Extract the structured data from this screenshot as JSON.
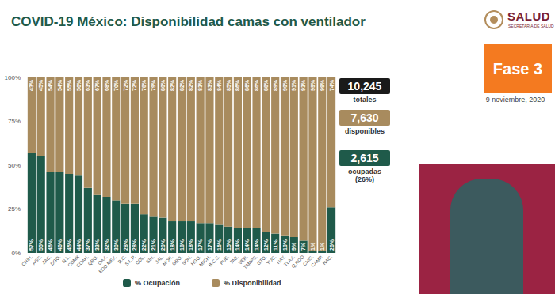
{
  "chart_data": {
    "type": "bar",
    "title": "COVID-19 México: Disponibilidad camas con ventilador",
    "stacked": true,
    "data_labels": true,
    "grid": false,
    "legend": "bottom",
    "categories": [
      "CHIH.",
      "AGS.",
      "ZAC.",
      "DGO.",
      "N.L.",
      "CDMX",
      "COAH.",
      "QRO.",
      "OAX.",
      "EDO.MEX.",
      "B.C.",
      "S.L.P.",
      "COL.",
      "SIN.",
      "JAL.",
      "MOR.",
      "GRO.",
      "SON.",
      "HGO.",
      "MICH.",
      "B.C.S.",
      "PUE.",
      "TAB.",
      "VER.",
      "TAMPS.",
      "GTO.",
      "YUC.",
      "NAY.",
      "TLAX.",
      "Q.ROO",
      "CHIS.",
      "CAMP.",
      "NAC."
    ],
    "series": [
      {
        "name": "% Ocupación",
        "color": "#1f5a4a",
        "values": [
          57,
          55,
          46,
          46,
          45,
          44,
          37,
          33,
          32,
          30,
          28,
          28,
          22,
          21,
          20,
          18,
          18,
          18,
          17,
          17,
          16,
          15,
          14,
          14,
          14,
          12,
          11,
          10,
          9,
          7,
          1,
          1,
          26
        ],
        "value_labels": [
          "57%",
          "55%",
          "46%",
          "46%",
          "45%",
          "44%",
          "37%",
          "33%",
          "32%",
          "30%",
          "28%",
          "28%",
          "22%",
          "21%",
          "20%",
          "18%",
          "18%",
          "18%",
          "17%",
          "17%",
          "16%",
          "15%",
          "14%",
          "14%",
          "14%",
          "12%",
          "11%",
          "10%",
          "9%",
          "7%",
          "1%",
          "1%",
          "26%"
        ]
      },
      {
        "name": "% Disponibilidad",
        "color": "#a88b5e",
        "values": [
          43,
          45,
          54,
          54,
          55,
          56,
          63,
          67,
          68,
          70,
          72,
          72,
          78,
          79,
          80,
          82,
          82,
          82,
          83,
          83,
          84,
          85,
          86,
          86,
          86,
          88,
          89,
          90,
          91,
          93,
          99,
          99,
          74
        ],
        "value_labels": [
          "43%",
          "45%",
          "54%",
          "54%",
          "55%",
          "56%",
          "63%",
          "67%",
          "68%",
          "70%",
          "72%",
          "72%",
          "78%",
          "79%",
          "80%",
          "82%",
          "82%",
          "82%",
          "83%",
          "83%",
          "84%",
          "85%",
          "86%",
          "86%",
          "86%",
          "88%",
          "89%",
          "90%",
          "91%",
          "93%",
          "99%",
          "99%",
          "74%"
        ]
      }
    ],
    "ylim": [
      0,
      100
    ],
    "yticks": [
      {
        "value": 0,
        "label": "0%"
      },
      {
        "value": 25,
        "label": "25%"
      },
      {
        "value": 50,
        "label": "50%"
      },
      {
        "value": 75,
        "label": "75%"
      },
      {
        "value": 100,
        "label": "100%"
      }
    ]
  },
  "header": {
    "logo": "SALUD",
    "logo_subtitle": "SECRETARÍA DE SALUD",
    "phase": "Fase 3",
    "date": "9 noviembre, 2020"
  },
  "summary": [
    {
      "value": "10,245",
      "label": "totales",
      "color": "#1a1a1a"
    },
    {
      "value": "7,630",
      "label": "disponibles",
      "color": "#a88b5e"
    },
    {
      "value": "2,615",
      "label": "ocupadas (26%)",
      "color": "#1f5a4a"
    }
  ]
}
